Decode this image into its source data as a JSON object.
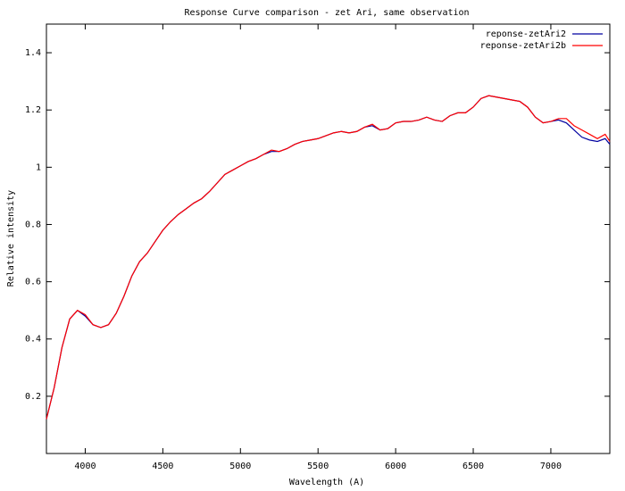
{
  "chart_data": {
    "type": "line",
    "title": "Response Curve comparison - zet Ari, same observation",
    "x_label": "Wavelength (A)",
    "y_label": "Relative intensity",
    "x": [
      3750,
      3800,
      3850,
      3900,
      3950,
      4000,
      4050,
      4100,
      4150,
      4200,
      4250,
      4300,
      4350,
      4400,
      4450,
      4500,
      4550,
      4600,
      4650,
      4700,
      4750,
      4800,
      4850,
      4900,
      4950,
      5000,
      5050,
      5100,
      5150,
      5200,
      5250,
      5300,
      5350,
      5400,
      5450,
      5500,
      5550,
      5600,
      5650,
      5700,
      5750,
      5800,
      5850,
      5900,
      5950,
      6000,
      6050,
      6100,
      6150,
      6200,
      6250,
      6300,
      6350,
      6400,
      6450,
      6500,
      6550,
      6600,
      6650,
      6700,
      6750,
      6800,
      6850,
      6900,
      6950,
      7000,
      7050,
      7100,
      7150,
      7200,
      7250,
      7300,
      7350,
      7380
    ],
    "series": [
      {
        "name": "reponse-zetAri2",
        "color": "#0000a0",
        "values": [
          0.12,
          0.23,
          0.37,
          0.47,
          0.5,
          0.48,
          0.45,
          0.44,
          0.45,
          0.49,
          0.55,
          0.62,
          0.67,
          0.7,
          0.74,
          0.78,
          0.81,
          0.835,
          0.855,
          0.875,
          0.89,
          0.915,
          0.945,
          0.975,
          0.99,
          1.005,
          1.02,
          1.03,
          1.045,
          1.055,
          1.055,
          1.065,
          1.08,
          1.09,
          1.095,
          1.1,
          1.11,
          1.12,
          1.125,
          1.12,
          1.125,
          1.14,
          1.145,
          1.13,
          1.135,
          1.155,
          1.16,
          1.16,
          1.165,
          1.175,
          1.165,
          1.16,
          1.18,
          1.19,
          1.19,
          1.21,
          1.24,
          1.25,
          1.245,
          1.24,
          1.235,
          1.23,
          1.21,
          1.175,
          1.155,
          1.16,
          1.165,
          1.155,
          1.13,
          1.105,
          1.095,
          1.09,
          1.1,
          1.08
        ]
      },
      {
        "name": "reponse-zetAri2b",
        "color": "#ff0000",
        "values": [
          0.12,
          0.23,
          0.37,
          0.47,
          0.5,
          0.485,
          0.45,
          0.44,
          0.45,
          0.49,
          0.55,
          0.62,
          0.67,
          0.7,
          0.74,
          0.78,
          0.81,
          0.835,
          0.855,
          0.875,
          0.89,
          0.915,
          0.945,
          0.975,
          0.99,
          1.005,
          1.02,
          1.03,
          1.045,
          1.06,
          1.055,
          1.065,
          1.08,
          1.09,
          1.095,
          1.1,
          1.11,
          1.12,
          1.125,
          1.12,
          1.125,
          1.14,
          1.15,
          1.13,
          1.135,
          1.155,
          1.16,
          1.16,
          1.165,
          1.175,
          1.165,
          1.16,
          1.18,
          1.19,
          1.19,
          1.21,
          1.24,
          1.25,
          1.245,
          1.24,
          1.235,
          1.23,
          1.21,
          1.175,
          1.155,
          1.16,
          1.17,
          1.17,
          1.145,
          1.13,
          1.115,
          1.1,
          1.115,
          1.09
        ]
      }
    ],
    "xlim": [
      3750,
      7380
    ],
    "ylim": [
      0,
      1.5
    ],
    "xticks": [
      4000,
      4500,
      5000,
      5500,
      6000,
      6500,
      7000
    ],
    "yticks": [
      0.2,
      0.4,
      0.6,
      0.8,
      1,
      1.2,
      1.4
    ],
    "grid": false,
    "legend": "top-right"
  }
}
